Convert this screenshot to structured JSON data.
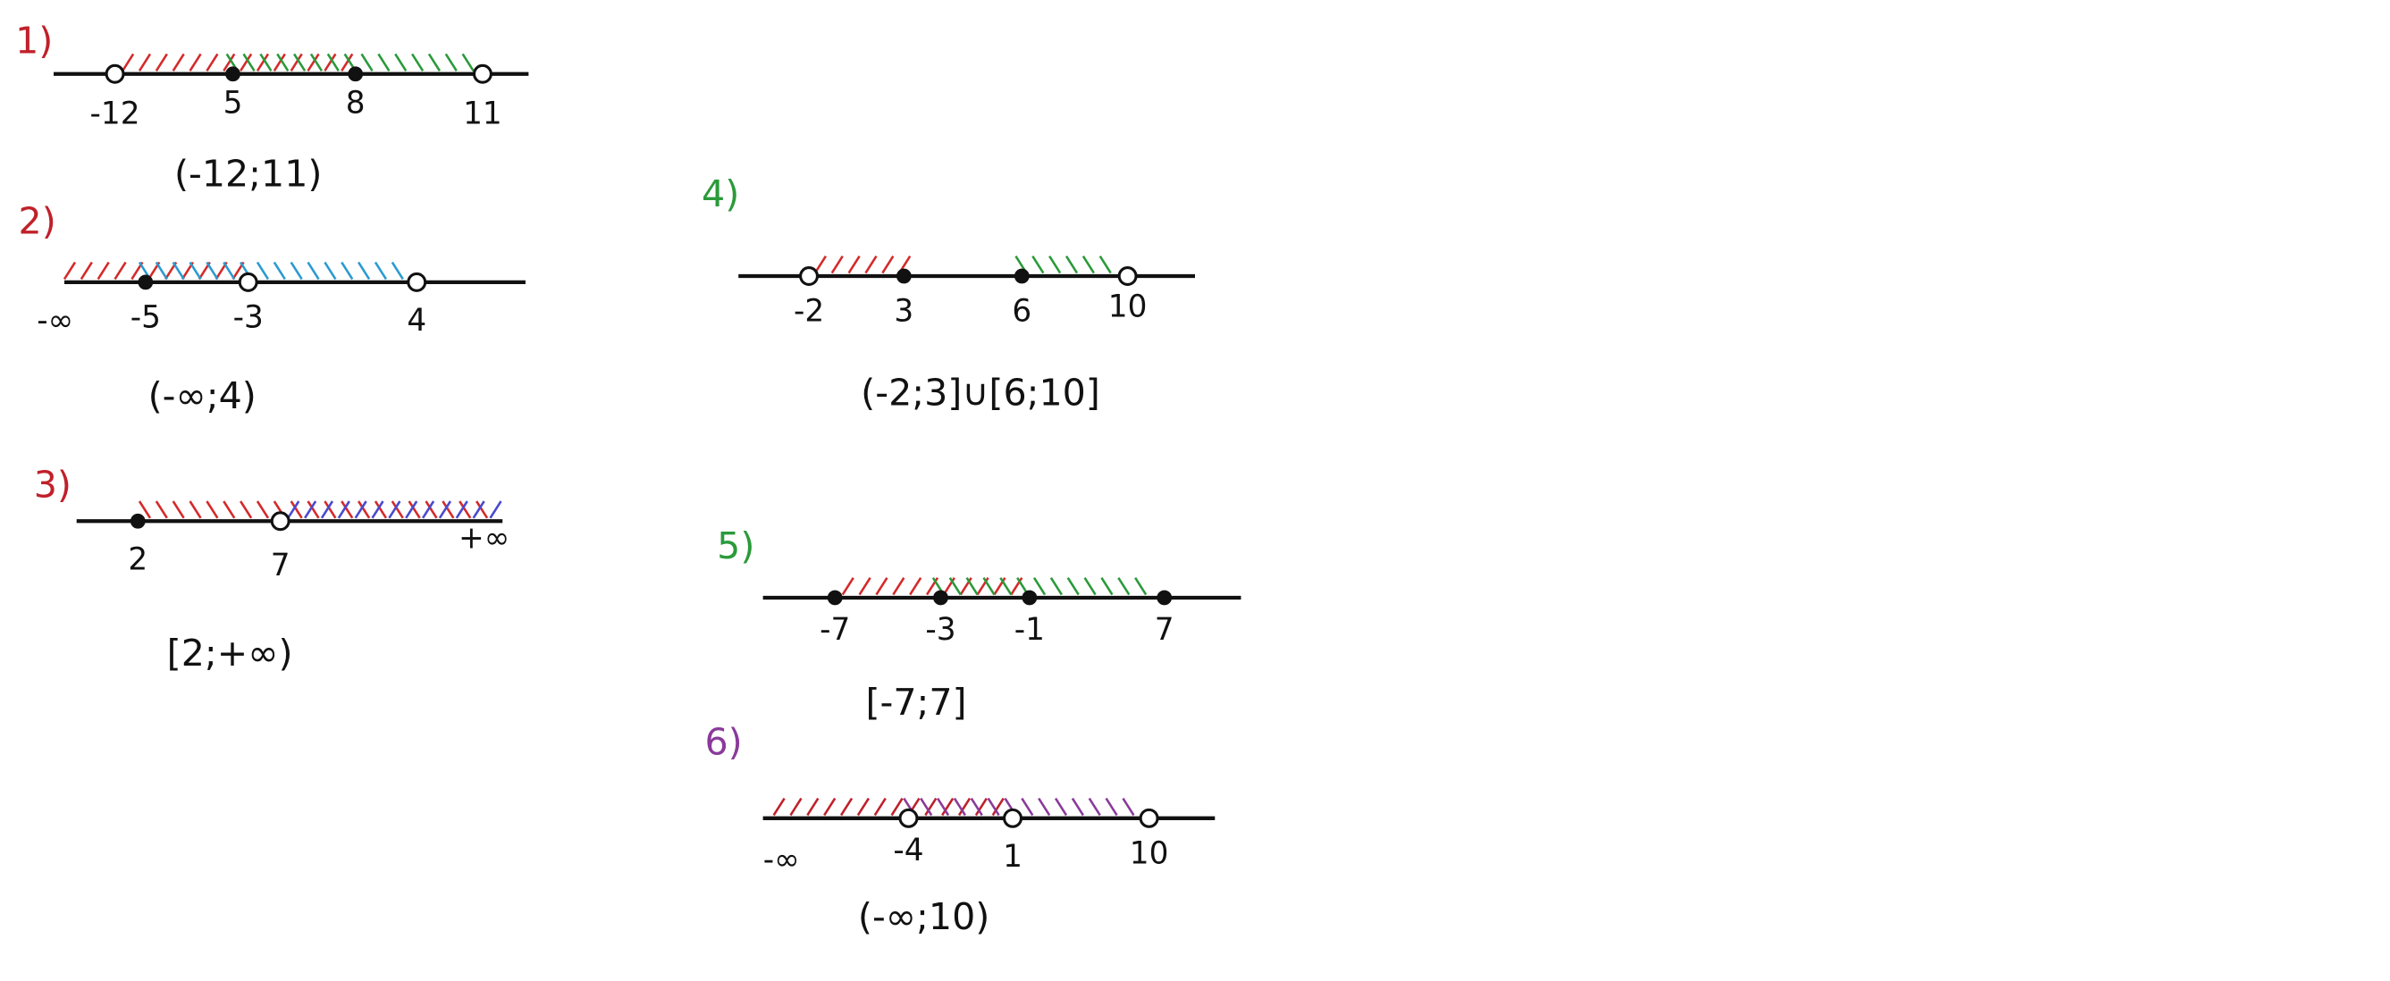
{
  "problems": [
    {
      "label": "1)",
      "points": [
        "-12",
        "5",
        "8",
        "11"
      ],
      "answer": "(-12;11)"
    },
    {
      "label": "2)",
      "points": [
        "-∞",
        "-5",
        "-3",
        "4"
      ],
      "answer": "(-∞;4)"
    },
    {
      "label": "3)",
      "points": [
        "2",
        "7",
        "+∞"
      ],
      "answer": "[2;+∞)"
    },
    {
      "label": "4)",
      "points": [
        "-2",
        "3",
        "6",
        "10"
      ],
      "answer": "(-2;3]∪[6;10]"
    },
    {
      "label": "5)",
      "points": [
        "-7",
        "-3",
        "-1",
        "7"
      ],
      "answer": "[-7;7]"
    },
    {
      "label": "6)",
      "points": [
        "-∞",
        "-4",
        "1",
        "10"
      ],
      "answer": "(-∞;10)"
    }
  ]
}
